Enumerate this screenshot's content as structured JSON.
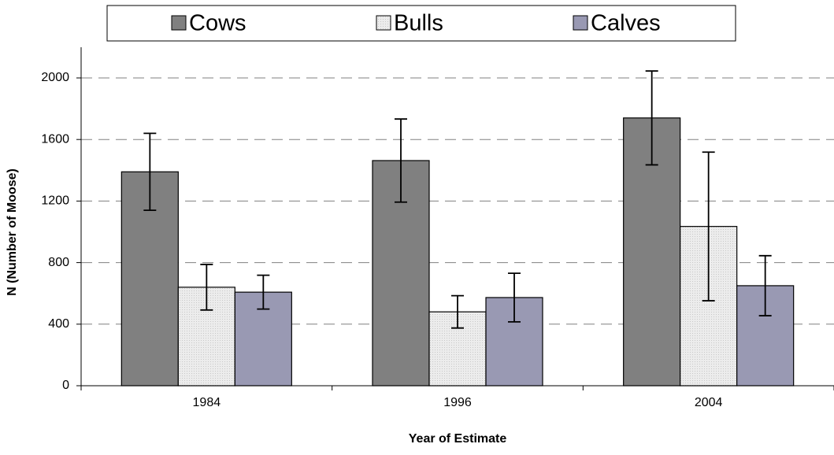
{
  "chart_data": {
    "type": "bar",
    "x_label": "Year of Estimate",
    "y_label": "N (Number of Moose)",
    "categories": [
      "1984",
      "1996",
      "2004"
    ],
    "series": [
      {
        "name": "Cows",
        "color": "#808080",
        "values": [
          1390,
          1463,
          1740
        ],
        "errors": [
          250,
          270,
          305
        ]
      },
      {
        "name": "Bulls",
        "color": "#e6e6e6",
        "values": [
          640,
          480,
          1035
        ],
        "errors": [
          148,
          105,
          483
        ]
      },
      {
        "name": "Calves",
        "color": "#9999b3",
        "values": [
          608,
          573,
          650
        ],
        "errors": [
          110,
          158,
          195
        ]
      }
    ],
    "ylim": [
      0,
      2000
    ],
    "yticks": [
      0,
      400,
      800,
      1200,
      1600,
      2000
    ],
    "grid": true
  }
}
